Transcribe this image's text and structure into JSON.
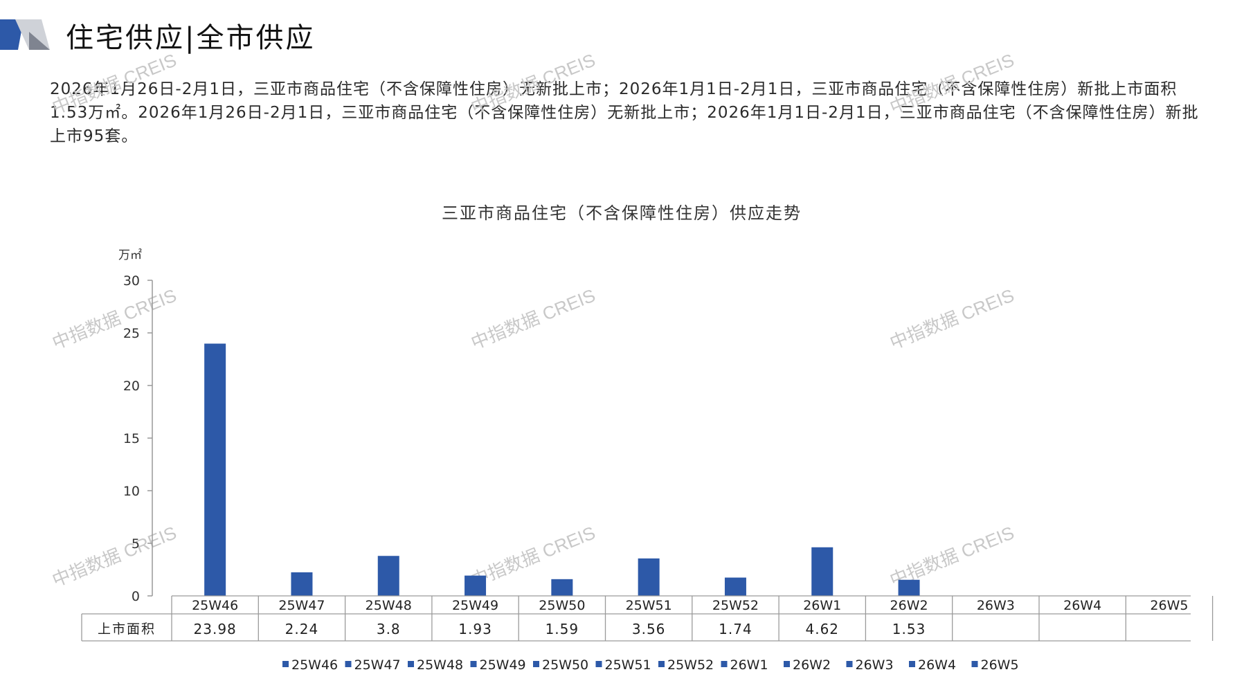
{
  "header": {
    "title": "住宅供应|全市供应",
    "accent_color": "#2d59a8"
  },
  "description": "2026年1月26日-2月1日，三亚市商品住宅（不含保障性住房）无新批上市；2026年1月1日-2月1日，三亚市商品住宅（不含保障性住房）新批上市面积1.53万㎡。2026年1月26日-2月1日，三亚市商品住宅（不含保障性住房）无新批上市；2026年1月1日-2月1日，三亚市商品住宅（不含保障性住房）新批上市95套。",
  "watermark": "中指数据 CREIS",
  "chart_data": {
    "type": "bar",
    "title": "三亚市商品住宅（不含保障性住房）供应走势",
    "ylabel": "万㎡",
    "ylim": [
      0,
      30
    ],
    "yticks": [
      0,
      5,
      10,
      15,
      20,
      25,
      30
    ],
    "categories": [
      "25W46",
      "25W47",
      "25W48",
      "25W49",
      "25W50",
      "25W51",
      "25W52",
      "26W1",
      "26W2",
      "26W3",
      "26W4",
      "26W5"
    ],
    "series": [
      {
        "name": "上市面积",
        "values": [
          23.98,
          2.24,
          3.8,
          1.93,
          1.59,
          3.56,
          1.74,
          4.62,
          1.53,
          null,
          null,
          null
        ]
      }
    ],
    "table_row_label": "上市面积",
    "table_values": [
      "23.98",
      "2.24",
      "3.8",
      "1.93",
      "1.59",
      "3.56",
      "1.74",
      "4.62",
      "1.53",
      "",
      "",
      ""
    ],
    "legend_position": "bottom",
    "bar_color": "#2d59a8",
    "grid": false
  }
}
